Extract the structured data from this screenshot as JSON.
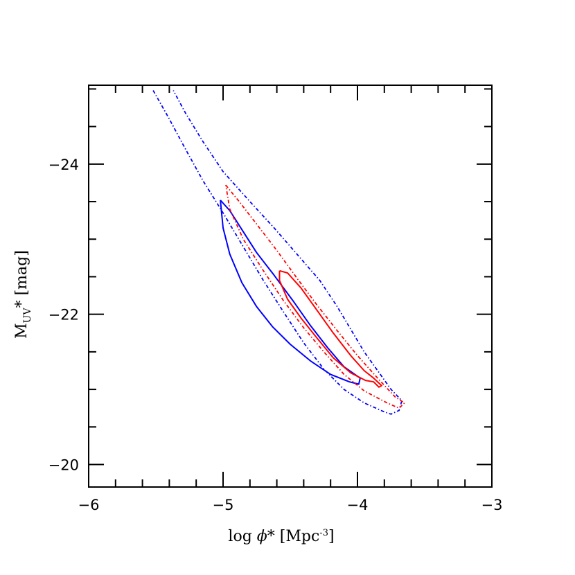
{
  "chart_data": {
    "type": "contour",
    "xlabel": {
      "base": "log ",
      "symbol": "ϕ",
      "star": "*",
      "open": " [Mpc",
      "exp": "-3",
      "close": "]"
    },
    "ylabel": {
      "base": "M",
      "sub": "UV",
      "rest": "* [mag]"
    },
    "xlim": [
      -6,
      -3
    ],
    "ylim": [
      -19.7,
      -25.05
    ],
    "x_major_ticks": [
      -6,
      -5,
      -4,
      -3
    ],
    "x_tick_labels": [
      "−6",
      "−5",
      "−4",
      "−3"
    ],
    "x_minor_step": 0.2,
    "y_major_ticks": [
      -24,
      -22,
      -20
    ],
    "y_tick_labels": [
      "−24",
      "−22",
      "−20"
    ],
    "y_minor_step": 0.5,
    "grid": false,
    "legend": "none",
    "series": [
      {
        "color": "#0000ff",
        "style": "solid",
        "points": [
          [
            -5.02,
            -23.52
          ],
          [
            -4.95,
            -23.38
          ],
          [
            -4.85,
            -23.1
          ],
          [
            -4.75,
            -22.82
          ],
          [
            -4.62,
            -22.52
          ],
          [
            -4.48,
            -22.18
          ],
          [
            -4.35,
            -21.85
          ],
          [
            -4.22,
            -21.55
          ],
          [
            -4.1,
            -21.3
          ],
          [
            -3.98,
            -21.15
          ],
          [
            -3.99,
            -21.07
          ],
          [
            -4.06,
            -21.1
          ],
          [
            -4.2,
            -21.2
          ],
          [
            -4.35,
            -21.38
          ],
          [
            -4.5,
            -21.6
          ],
          [
            -4.63,
            -21.83
          ],
          [
            -4.75,
            -22.1
          ],
          [
            -4.86,
            -22.42
          ],
          [
            -4.95,
            -22.8
          ],
          [
            -5.0,
            -23.15
          ],
          [
            -5.02,
            -23.52
          ]
        ]
      },
      {
        "color": "#0000ff",
        "style": "dash-dot",
        "points": [
          [
            -5.52,
            -24.98
          ],
          [
            -5.4,
            -24.6
          ],
          [
            -5.28,
            -24.2
          ],
          [
            -5.15,
            -23.78
          ],
          [
            -5.0,
            -23.35
          ],
          [
            -4.85,
            -22.9
          ],
          [
            -4.7,
            -22.45
          ],
          [
            -4.55,
            -22.03
          ],
          [
            -4.4,
            -21.62
          ],
          [
            -4.25,
            -21.27
          ],
          [
            -4.1,
            -21.0
          ],
          [
            -3.95,
            -20.82
          ],
          [
            -3.8,
            -20.7
          ],
          [
            -3.75,
            -20.67
          ],
          [
            -3.69,
            -20.72
          ],
          [
            -3.67,
            -20.85
          ],
          [
            -3.75,
            -21.0
          ],
          [
            -3.85,
            -21.25
          ],
          [
            -3.95,
            -21.5
          ],
          [
            -4.05,
            -21.8
          ],
          [
            -4.15,
            -22.1
          ],
          [
            -4.28,
            -22.45
          ],
          [
            -4.45,
            -22.8
          ],
          [
            -4.62,
            -23.15
          ],
          [
            -4.8,
            -23.5
          ],
          [
            -5.0,
            -23.9
          ],
          [
            -5.15,
            -24.3
          ],
          [
            -5.28,
            -24.68
          ],
          [
            -5.37,
            -24.98
          ]
        ]
      },
      {
        "color": "#ff0000",
        "style": "solid",
        "points": [
          [
            -4.58,
            -22.58
          ],
          [
            -4.52,
            -22.55
          ],
          [
            -4.42,
            -22.35
          ],
          [
            -4.3,
            -22.05
          ],
          [
            -4.18,
            -21.75
          ],
          [
            -4.05,
            -21.45
          ],
          [
            -3.95,
            -21.25
          ],
          [
            -3.88,
            -21.15
          ],
          [
            -3.82,
            -21.05
          ],
          [
            -3.84,
            -21.03
          ],
          [
            -3.88,
            -21.1
          ],
          [
            -3.94,
            -21.12
          ],
          [
            -4.05,
            -21.22
          ],
          [
            -4.18,
            -21.42
          ],
          [
            -4.3,
            -21.68
          ],
          [
            -4.42,
            -21.95
          ],
          [
            -4.52,
            -22.2
          ],
          [
            -4.58,
            -22.45
          ],
          [
            -4.58,
            -22.58
          ]
        ]
      },
      {
        "color": "#ff0000",
        "style": "dash-dot",
        "points": [
          [
            -4.98,
            -23.72
          ],
          [
            -4.88,
            -23.5
          ],
          [
            -4.75,
            -23.2
          ],
          [
            -4.6,
            -22.85
          ],
          [
            -4.45,
            -22.48
          ],
          [
            -4.3,
            -22.12
          ],
          [
            -4.15,
            -21.78
          ],
          [
            -4.0,
            -21.45
          ],
          [
            -3.85,
            -21.15
          ],
          [
            -3.72,
            -20.9
          ],
          [
            -3.65,
            -20.82
          ],
          [
            -3.69,
            -20.75
          ],
          [
            -3.78,
            -20.82
          ],
          [
            -3.95,
            -20.98
          ],
          [
            -4.1,
            -21.2
          ],
          [
            -4.25,
            -21.5
          ],
          [
            -4.4,
            -21.82
          ],
          [
            -4.55,
            -22.18
          ],
          [
            -4.7,
            -22.58
          ],
          [
            -4.85,
            -23.0
          ],
          [
            -4.95,
            -23.4
          ],
          [
            -4.98,
            -23.72
          ]
        ]
      }
    ]
  }
}
